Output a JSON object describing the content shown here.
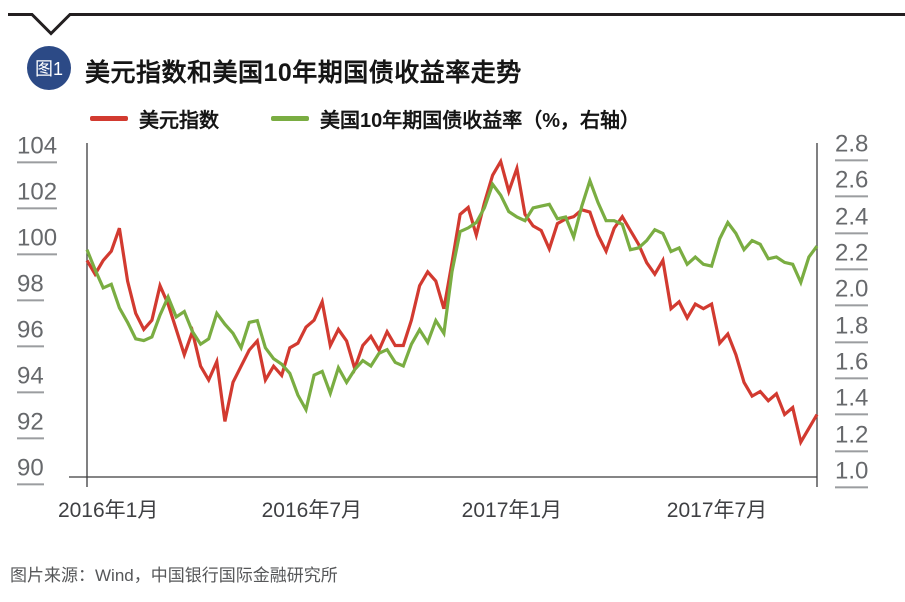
{
  "figure_badge": "图1",
  "title": "美元指数和美国10年期国债收益率走势",
  "legend": [
    {
      "label": "美元指数",
      "color": "#d23a30"
    },
    {
      "label": "美国10年期国债收益率（%，右轴）",
      "color": "#7aad42"
    }
  ],
  "source_note": "图片来源：Wind，中国银行国际金融研究所",
  "colors": {
    "badge": "#2c4a86",
    "top_rule": "#231f20",
    "axis_line": "#3c3c3e",
    "tick_text": "#67696c",
    "red_series": "#d23a30",
    "green_series": "#7aad42"
  },
  "chart_data": {
    "type": "line",
    "title": "美元指数和美国10年期国债收益率走势",
    "frequency_note": "weekly points, Jan 2016 - Sep 2017",
    "grid": "off",
    "legend_position": "top",
    "x_axis": {
      "labels": [
        "2016年1月",
        "2016年7月",
        "2017年1月",
        "2017年7月"
      ],
      "label_positions": [
        0.029,
        0.308,
        0.582,
        0.863
      ]
    },
    "left_axis": {
      "min": 90,
      "max": 104,
      "ticks": [
        "104",
        "102",
        "100",
        "98",
        "96",
        "94",
        "92",
        "90"
      ],
      "series_name": "美元指数"
    },
    "right_axis": {
      "min": 1.0,
      "max": 2.8,
      "ticks": [
        "2.8",
        "2.6",
        "2.4",
        "2.2",
        "2.0",
        "1.8",
        "1.6",
        "1.4",
        "1.2",
        "1.0"
      ],
      "series_name": "美国10年期国债收益率（%）"
    },
    "series": [
      {
        "name": "美元指数",
        "axis": "left",
        "color": "#d23a30",
        "values": [
          99.2,
          98.6,
          99.2,
          99.6,
          100.6,
          98.3,
          96.9,
          96.2,
          96.6,
          98.1,
          97.3,
          96.2,
          95.1,
          96.1,
          94.6,
          94.0,
          94.8,
          92.2,
          93.9,
          94.6,
          95.3,
          95.7,
          94.0,
          94.6,
          94.2,
          95.4,
          95.6,
          96.3,
          96.6,
          97.4,
          95.5,
          96.2,
          95.7,
          94.5,
          95.5,
          95.9,
          95.3,
          96.1,
          95.5,
          95.5,
          96.6,
          98.1,
          98.7,
          98.3,
          97.1,
          99.1,
          101.2,
          101.5,
          100.3,
          101.7,
          102.9,
          103.5,
          102.2,
          103.2,
          101.2,
          100.7,
          100.5,
          99.7,
          100.8,
          101.0,
          101.1,
          101.4,
          101.3,
          100.3,
          99.6,
          100.6,
          101.1,
          100.5,
          99.9,
          99.1,
          98.6,
          99.2,
          97.1,
          97.4,
          96.7,
          97.3,
          97.1,
          97.3,
          95.6,
          96.0,
          95.1,
          93.9,
          93.3,
          93.5,
          93.1,
          93.4,
          92.5,
          92.8,
          91.3,
          91.9,
          92.5
        ]
      },
      {
        "name": "美国10年期国债收益率（%，右轴）",
        "axis": "right",
        "color": "#7aad42",
        "values": [
          2.24,
          2.13,
          2.03,
          2.05,
          1.92,
          1.84,
          1.75,
          1.74,
          1.76,
          1.88,
          1.98,
          1.87,
          1.9,
          1.79,
          1.72,
          1.75,
          1.89,
          1.83,
          1.78,
          1.7,
          1.84,
          1.85,
          1.7,
          1.64,
          1.61,
          1.56,
          1.44,
          1.36,
          1.55,
          1.57,
          1.45,
          1.59,
          1.51,
          1.58,
          1.63,
          1.6,
          1.67,
          1.69,
          1.62,
          1.6,
          1.72,
          1.8,
          1.73,
          1.85,
          1.78,
          2.12,
          2.34,
          2.36,
          2.39,
          2.47,
          2.6,
          2.54,
          2.45,
          2.42,
          2.4,
          2.47,
          2.48,
          2.49,
          2.41,
          2.42,
          2.31,
          2.48,
          2.62,
          2.5,
          2.4,
          2.4,
          2.38,
          2.24,
          2.25,
          2.29,
          2.35,
          2.33,
          2.23,
          2.25,
          2.16,
          2.2,
          2.16,
          2.15,
          2.3,
          2.39,
          2.33,
          2.24,
          2.29,
          2.27,
          2.19,
          2.2,
          2.17,
          2.16,
          2.06,
          2.2,
          2.26
        ]
      }
    ]
  }
}
